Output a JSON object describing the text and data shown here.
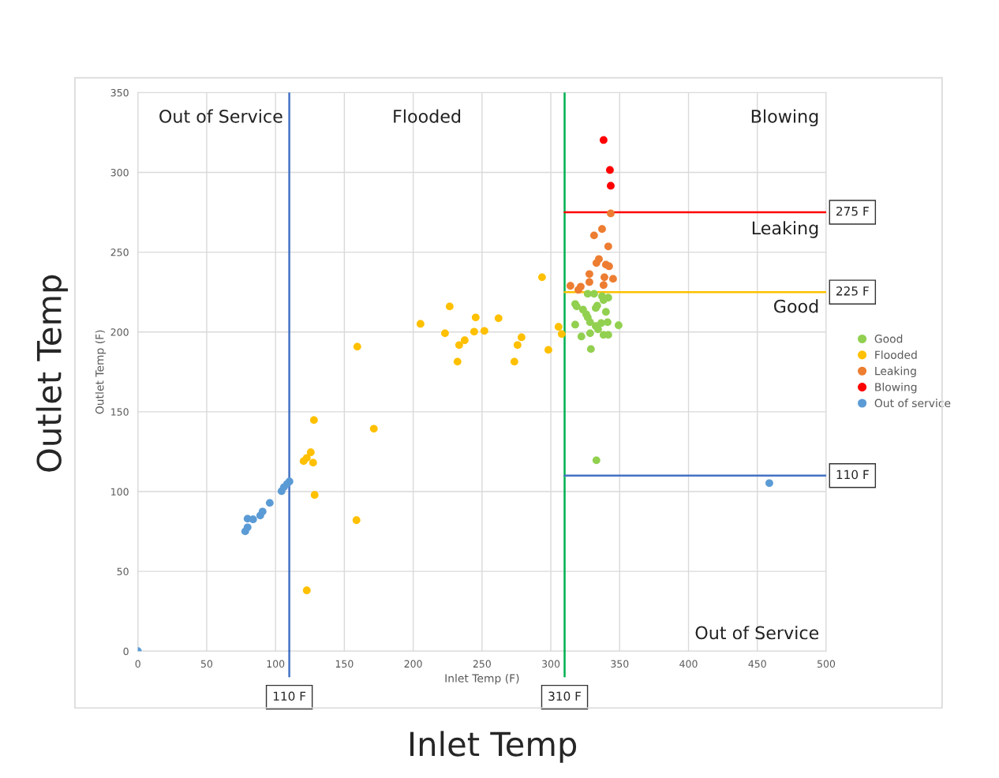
{
  "chart_data": {
    "type": "scatter",
    "xlabel": "Inlet Temp (F)",
    "ylabel": "Outlet Temp (F)",
    "xlim": [
      0,
      500
    ],
    "xticks": [
      0,
      50,
      100,
      150,
      200,
      250,
      300,
      350,
      400,
      450,
      500
    ],
    "ylim": [
      0,
      350
    ],
    "yticks": [
      0,
      50,
      100,
      150,
      200,
      250,
      300,
      350
    ],
    "grid": true,
    "legend": "right",
    "marker": "circle",
    "annotations": [
      "Outlet Temp",
      "Inlet Temp",
      "Out of Service",
      "Flooded",
      "Blowing",
      "Leaking",
      "Good",
      "Out of Service"
    ],
    "ref_lines": [
      {
        "axis": "x",
        "value": 110,
        "label": "110 F",
        "color": "#4472c4"
      },
      {
        "axis": "x",
        "value": 310,
        "label": "310 F",
        "color": "#00b050"
      },
      {
        "axis": "y",
        "value": 275,
        "label": "275 F",
        "color": "#ff0000"
      },
      {
        "axis": "y",
        "value": 225,
        "label": "225 F",
        "color": "#ffc000"
      },
      {
        "axis": "y",
        "value": 110,
        "label": "110 F",
        "color": "#4472c4"
      }
    ],
    "series": [
      {
        "name": "Good",
        "color": "#92d050",
        "x": [
          326.8,
          331.4,
          337.2,
          341.7,
          338.3,
          317.7,
          318.8,
          333.7,
          332.6,
          323.4,
          340.0,
          325.7,
          326.8,
          317.7,
          328.5,
          336.6,
          341.2,
          349.2,
          332.6,
          334.3,
          328.5,
          322.2,
          338.3,
          341.7,
          329.1,
          333.1
        ],
        "values": [
          223.9,
          223.9,
          222.4,
          221.5,
          220.0,
          217.5,
          216.0,
          216.5,
          215.0,
          214.0,
          212.6,
          211.1,
          209.1,
          204.6,
          206.1,
          205.6,
          206.1,
          204.2,
          203.7,
          201.7,
          199.2,
          197.2,
          198.2,
          198.2,
          189.3,
          119.6
        ]
      },
      {
        "name": "Flooded",
        "color": "#ffc000",
        "x": [
          293.6,
          226.5,
          205.3,
          245.4,
          262.0,
          223.1,
          244.3,
          251.7,
          237.4,
          233.4,
          159.4,
          278.7,
          275.8,
          298.2,
          232.2,
          273.5,
          305.6,
          307.9,
          171.4,
          127.9,
          125.6,
          120.4,
          122.7,
          127.3,
          128.4,
          158.8,
          122.7
        ],
        "values": [
          234.3,
          216.0,
          205.1,
          209.1,
          208.6,
          199.2,
          200.2,
          200.7,
          194.8,
          191.8,
          190.8,
          196.7,
          191.8,
          188.8,
          181.4,
          181.4,
          203.2,
          198.7,
          139.4,
          144.8,
          124.6,
          119.1,
          121.1,
          118.1,
          97.9,
          82.1,
          38.1
        ]
      },
      {
        "name": "Leaking",
        "color": "#ed7d31",
        "x": [
          343.5,
          337.2,
          331.4,
          341.7,
          334.9,
          333.1,
          340.0,
          342.3,
          328.0,
          338.9,
          345.2,
          328.0,
          338.3,
          314.2,
          321.7,
          320.0
        ],
        "values": [
          274.3,
          264.5,
          260.5,
          253.6,
          245.7,
          243.2,
          242.2,
          241.2,
          236.3,
          234.3,
          233.3,
          231.3,
          229.4,
          228.9,
          228.4,
          226.4
        ]
      },
      {
        "name": "Blowing",
        "color": "#ff0000",
        "x": [
          338.3,
          342.9,
          343.5
        ],
        "values": [
          320.3,
          301.5,
          291.6
        ]
      },
      {
        "name": "Out of service",
        "color": "#5b9bd5",
        "x": [
          110.1,
          108.4,
          106.1,
          104.4,
          95.8,
          90.6,
          88.9,
          83.7,
          79.7,
          79.7,
          78.0,
          458.7,
          0
        ],
        "values": [
          106.3,
          104.8,
          102.8,
          100.3,
          92.9,
          87.5,
          85.0,
          82.6,
          83.0,
          77.6,
          75.1,
          105.3,
          0
        ]
      }
    ]
  }
}
